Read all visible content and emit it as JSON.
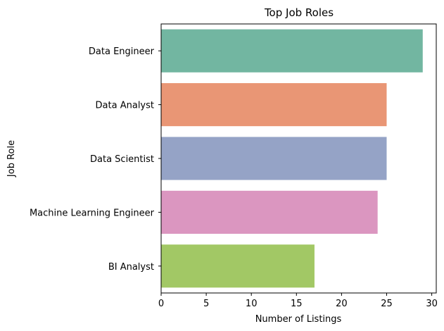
{
  "chart_data": {
    "type": "bar",
    "orientation": "horizontal",
    "title": "Top Job Roles",
    "xlabel": "Number of Listings",
    "ylabel": "Job Role",
    "categories": [
      "Data Engineer",
      "Data Analyst",
      "Data Scientist",
      "Machine Learning Engineer",
      "BI Analyst"
    ],
    "values": [
      29,
      25,
      25,
      24,
      17
    ],
    "colors": [
      "#72b6a1",
      "#e99675",
      "#95a3c6",
      "#db96c0",
      "#a2c865"
    ],
    "xlim": [
      0,
      30.5
    ],
    "xticks": [
      "0",
      "5",
      "10",
      "15",
      "20",
      "25",
      "30"
    ],
    "grid": false,
    "legend": "none"
  }
}
